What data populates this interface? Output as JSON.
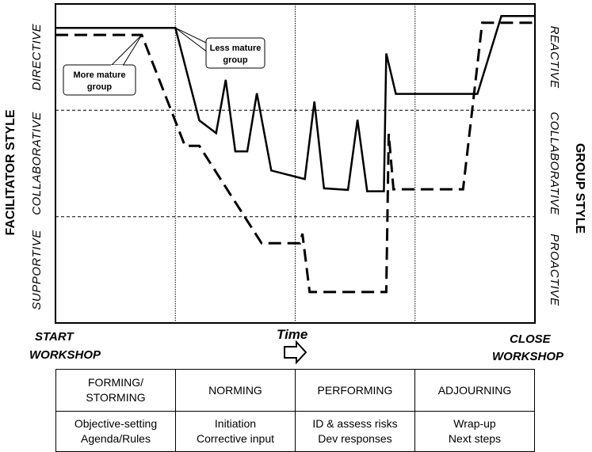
{
  "chart_data": {
    "type": "line",
    "y_axis_left_title": "FACILITATOR STYLE",
    "y_axis_left_bands": [
      "DIRECTIVE",
      "COLLABORATIVE",
      "SUPPORTIVE"
    ],
    "y_axis_right_title": "GROUP STYLE",
    "y_axis_right_bands": [
      "REACTIVE",
      "COLLABORATIVE",
      "PROACTIVE"
    ],
    "x_axis_label": "Time",
    "x_start_label": [
      "START",
      "WORKSHOP"
    ],
    "x_end_label": [
      "CLOSE",
      "WORKSHOP"
    ],
    "xlim": [
      0,
      100
    ],
    "ylim": [
      0,
      100
    ],
    "band_boundaries": [
      33.3,
      66.7
    ],
    "phase_boundaries": [
      25,
      50,
      75
    ],
    "series": [
      {
        "name": "Less mature group",
        "style": "solid",
        "points": [
          [
            0,
            92.5
          ],
          [
            25,
            92.5
          ],
          [
            30,
            63.5
          ],
          [
            33.5,
            59.5
          ],
          [
            35.5,
            76.2
          ],
          [
            37.5,
            53.8
          ],
          [
            40,
            53.8
          ],
          [
            42,
            72
          ],
          [
            45,
            47.8
          ],
          [
            52,
            45.1
          ],
          [
            54,
            69.4
          ],
          [
            56,
            42.2
          ],
          [
            61,
            41.7
          ],
          [
            63,
            63.7
          ],
          [
            65,
            41.3
          ],
          [
            68.5,
            41.3
          ],
          [
            69,
            84.5
          ],
          [
            71,
            71.8
          ],
          [
            88,
            71.8
          ],
          [
            93,
            96.2
          ],
          [
            100,
            96.2
          ]
        ]
      },
      {
        "name": "More mature group",
        "style": "dashed",
        "points": [
          [
            0,
            90.3
          ],
          [
            18,
            90.3
          ],
          [
            27,
            55.5
          ],
          [
            30,
            55.5
          ],
          [
            43,
            25
          ],
          [
            51,
            25
          ],
          [
            51.5,
            28
          ],
          [
            53,
            9.7
          ],
          [
            69,
            9.7
          ],
          [
            69.5,
            59.3
          ],
          [
            70.5,
            41.9
          ],
          [
            85,
            41.9
          ],
          [
            89,
            94.1
          ],
          [
            100,
            94.1
          ]
        ]
      }
    ],
    "annotations": [
      {
        "text": [
          "Less mature",
          "group"
        ],
        "series": "Less mature group"
      },
      {
        "text": [
          "More mature",
          "group"
        ],
        "series": "More mature group"
      }
    ],
    "grid": false
  },
  "phases_table": {
    "stages": [
      [
        "FORMING/",
        "STORMING"
      ],
      [
        "NORMING"
      ],
      [
        "PERFORMING"
      ],
      [
        "ADJOURNING"
      ]
    ],
    "activities": [
      [
        "Objective-setting",
        "Agenda/Rules"
      ],
      [
        "Initiation",
        "Corrective input"
      ],
      [
        "ID & assess risks",
        "Dev responses"
      ],
      [
        "Wrap-up",
        "Next steps"
      ]
    ]
  }
}
